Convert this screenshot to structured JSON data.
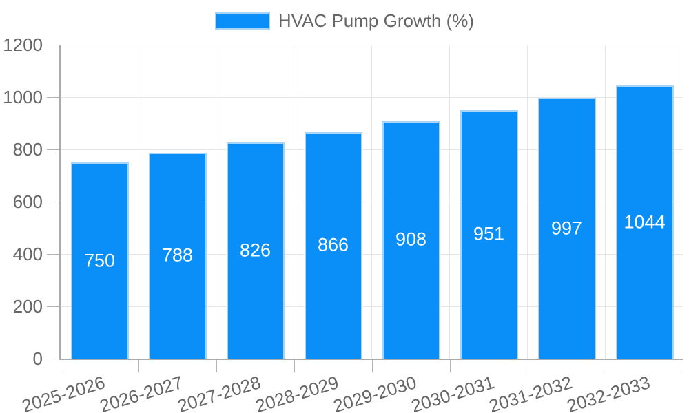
{
  "chart_data": {
    "type": "bar",
    "title": "",
    "legend_label": "HVAC Pump Growth (%)",
    "legend_position": "top",
    "categories": [
      "2025-2026",
      "2026-2027",
      "2027-2028",
      "2028-2029",
      "2029-2030",
      "2030-2031",
      "2031-2032",
      "2032-2033"
    ],
    "series": [
      {
        "name": "HVAC Pump Growth (%)",
        "values": [
          750,
          788,
          826,
          866,
          908,
          951,
          997,
          1044
        ]
      }
    ],
    "value_labels": [
      "750",
      "788",
      "826",
      "866",
      "908",
      "951",
      "997",
      "1044"
    ],
    "xlabel": "",
    "ylabel": "",
    "ylim": [
      0,
      1200
    ],
    "yticks": [
      0,
      200,
      400,
      600,
      800,
      1000,
      1200
    ],
    "grid": true,
    "x_tick_rotation_deg": -17,
    "colors": {
      "bar_fill": "#0a8ff9",
      "bar_border": "#a8d4f7",
      "value_label": "#ffffff",
      "axis_text": "#666666",
      "grid_line": "#e6e6e6",
      "axis_line": "#ababab",
      "tick_mark": "#b3b3b3"
    }
  }
}
